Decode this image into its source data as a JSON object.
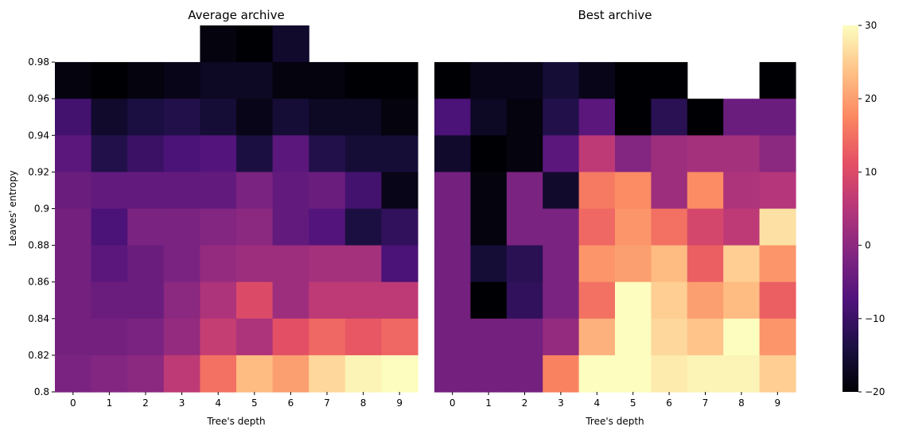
{
  "chart_data": [
    {
      "type": "heatmap",
      "title": "Average archive",
      "xlabel": "Tree's depth",
      "ylabel": "Leaves' entropy",
      "x_ticks": [
        "0",
        "1",
        "2",
        "3",
        "4",
        "5",
        "6",
        "7",
        "8",
        "9"
      ],
      "y_ticks": [
        "0.98",
        "0.96",
        "0.94",
        "0.92",
        "0.9",
        "0.88",
        "0.86",
        "0.84",
        "0.82",
        "0.8"
      ],
      "colormap": "magma",
      "vmin": -20,
      "vmax": 30,
      "rows_top_to_bottom": [
        [
          null,
          null,
          null,
          null,
          -19,
          -20,
          -16,
          null,
          null,
          null
        ],
        [
          -19,
          -20,
          -19,
          -18,
          -17,
          -17,
          -19,
          -19,
          -20,
          -20
        ],
        [
          -9,
          -16,
          -14,
          -13,
          -15,
          -18,
          -15,
          -17,
          -17,
          -19
        ],
        [
          -6,
          -13,
          -10,
          -8,
          -7,
          -14,
          -6,
          -13,
          -15,
          -15
        ],
        [
          -4,
          -5,
          -5,
          -5,
          -5,
          -2,
          -5,
          -4,
          -9,
          -18
        ],
        [
          -3,
          -8,
          -2,
          -2,
          -1,
          0,
          -5,
          -7,
          -14,
          -11
        ],
        [
          -3,
          -6,
          -4,
          -2,
          1,
          2,
          2,
          3,
          3,
          -8
        ],
        [
          -3,
          -4,
          -4,
          0,
          4,
          10,
          2,
          6,
          6,
          6
        ],
        [
          -3,
          -3,
          -2,
          1,
          7,
          4,
          11,
          14,
          12,
          14
        ],
        [
          -2,
          -1,
          0,
          6,
          15,
          23,
          20,
          26,
          29,
          30
        ]
      ]
    },
    {
      "type": "heatmap",
      "title": "Best archive",
      "xlabel": "Tree's depth",
      "x_ticks": [
        "0",
        "1",
        "2",
        "3",
        "4",
        "5",
        "6",
        "7",
        "8",
        "9"
      ],
      "colormap": "magma",
      "vmin": -20,
      "vmax": 30,
      "rows_top_to_bottom": [
        [
          null,
          null,
          null,
          null,
          null,
          null,
          null,
          null,
          null,
          null
        ],
        [
          -20,
          -18,
          -18,
          -15,
          -18,
          -20,
          -20,
          null,
          null,
          -20
        ],
        [
          -8,
          -17,
          -19,
          -13,
          -6,
          -20,
          -12,
          -20,
          -4,
          -4
        ],
        [
          -16,
          -20,
          -19,
          -6,
          6,
          -1,
          2,
          3,
          3,
          0
        ],
        [
          -3,
          -19,
          -2,
          -16,
          16,
          18,
          2,
          18,
          4,
          5
        ],
        [
          -3,
          -19,
          -2,
          -2,
          14,
          19,
          15,
          9,
          6,
          27
        ],
        [
          -3,
          -15,
          -12,
          -2,
          19,
          20,
          23,
          13,
          25,
          19
        ],
        [
          -3,
          -20,
          -11,
          -2,
          15,
          30,
          25,
          20,
          23,
          13
        ],
        [
          -3,
          -3,
          -3,
          1,
          22,
          30,
          26,
          24,
          30,
          19
        ],
        [
          -3,
          -3,
          -3,
          17,
          30,
          30,
          28,
          29,
          29,
          25
        ]
      ]
    }
  ],
  "colorbar": {
    "ticks": [
      "30",
      "20",
      "10",
      "0",
      "−10",
      "−20"
    ],
    "values": [
      30,
      20,
      10,
      0,
      -10,
      -20
    ]
  }
}
